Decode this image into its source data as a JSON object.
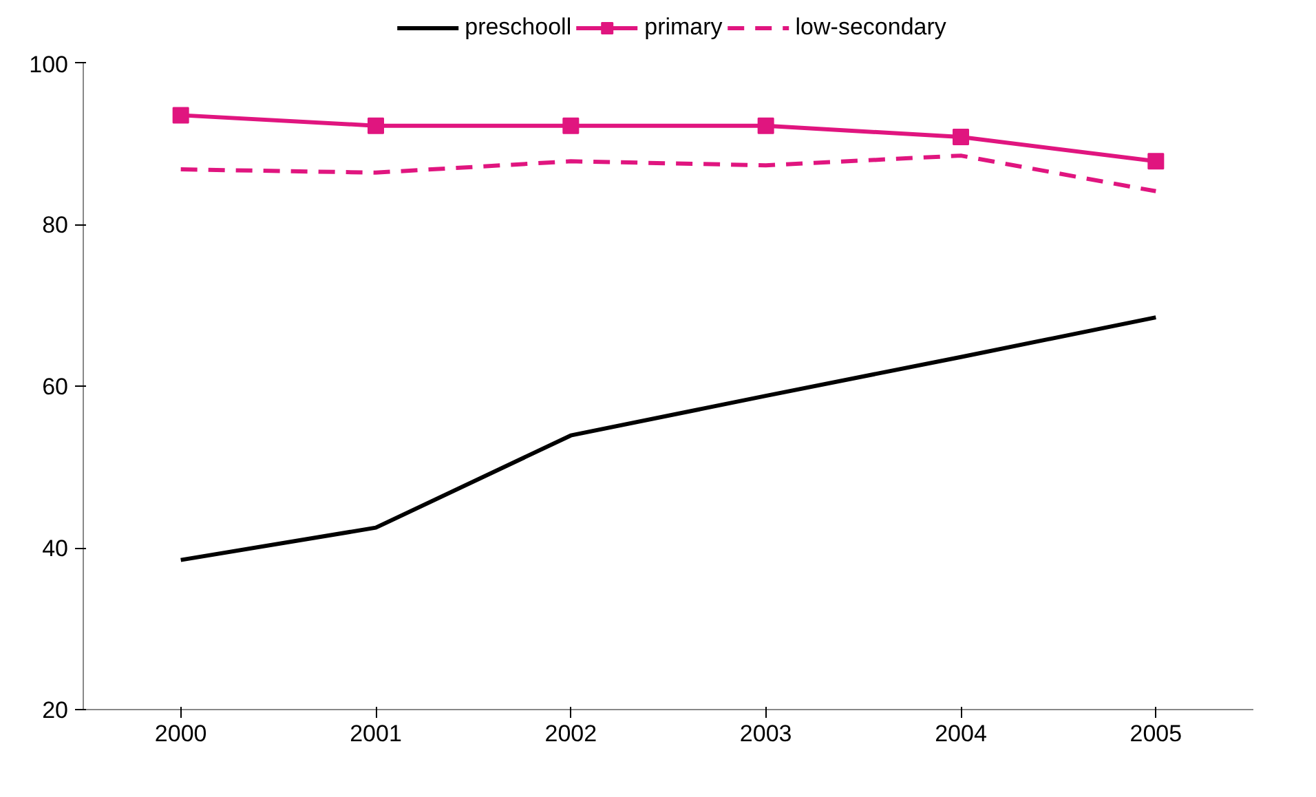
{
  "chart_data": {
    "type": "line",
    "categories": [
      "2000",
      "2001",
      "2002",
      "2003",
      "2004",
      "2005"
    ],
    "ylim": [
      20,
      100
    ],
    "yticks": [
      20,
      40,
      60,
      80,
      100
    ],
    "grid": false,
    "legend": "top",
    "series": [
      {
        "name": "preschooll",
        "color": "#000000",
        "marker": "none",
        "line_style": "solid",
        "values": [
          38.5,
          42.5,
          53.9,
          58.8,
          63.6,
          68.5
        ]
      },
      {
        "name": "primary",
        "color": "#e0157f",
        "marker": "square",
        "line_style": "solid",
        "values": [
          93.5,
          92.2,
          92.2,
          92.2,
          90.8,
          87.8
        ]
      },
      {
        "name": "low-secondary",
        "color": "#e0157f",
        "marker": "none",
        "line_style": "dashed",
        "values": [
          86.8,
          86.4,
          87.8,
          87.3,
          88.5,
          84.1
        ]
      }
    ]
  }
}
